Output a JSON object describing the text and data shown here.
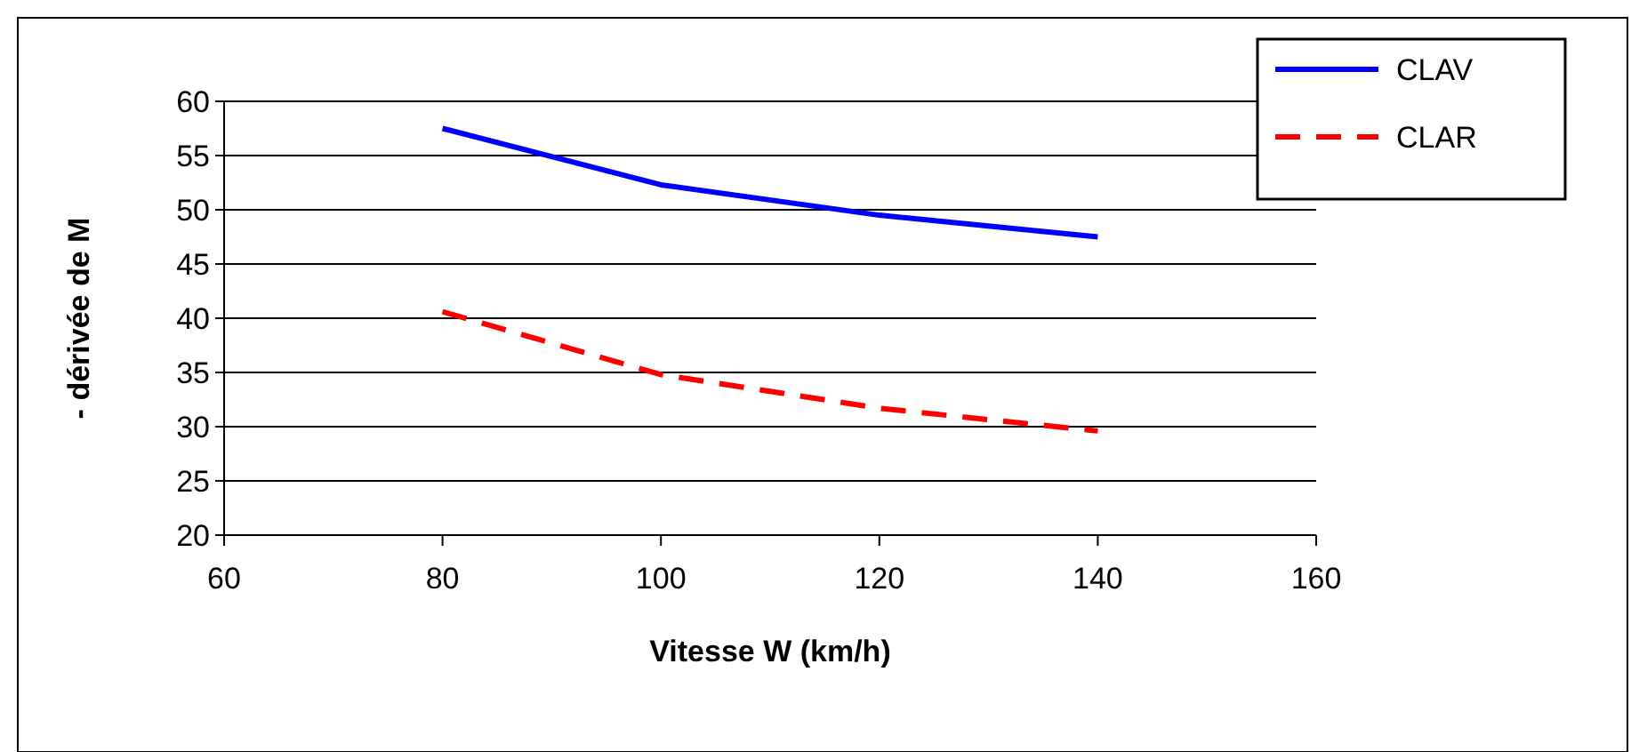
{
  "chart_data": {
    "type": "line",
    "xlabel": "Vitesse W (km/h)",
    "ylabel": "- dérivée de M",
    "x": [
      80,
      100,
      120,
      140
    ],
    "series": [
      {
        "name": "CLAV",
        "color": "#0000ff",
        "values": [
          57.5,
          52.3,
          49.5,
          47.5
        ],
        "line_style": "solid"
      },
      {
        "name": "CLAR",
        "color": "#ff0000",
        "values": [
          40.6,
          34.8,
          31.7,
          29.6
        ],
        "line_style": "dashed"
      }
    ],
    "xlim": [
      60,
      160
    ],
    "xticks": [
      60,
      80,
      100,
      120,
      140,
      160
    ],
    "ylim": [
      20,
      60
    ],
    "yticks": [
      20,
      25,
      30,
      35,
      40,
      45,
      50,
      55,
      60
    ],
    "grid": "y",
    "legend": "top right"
  }
}
